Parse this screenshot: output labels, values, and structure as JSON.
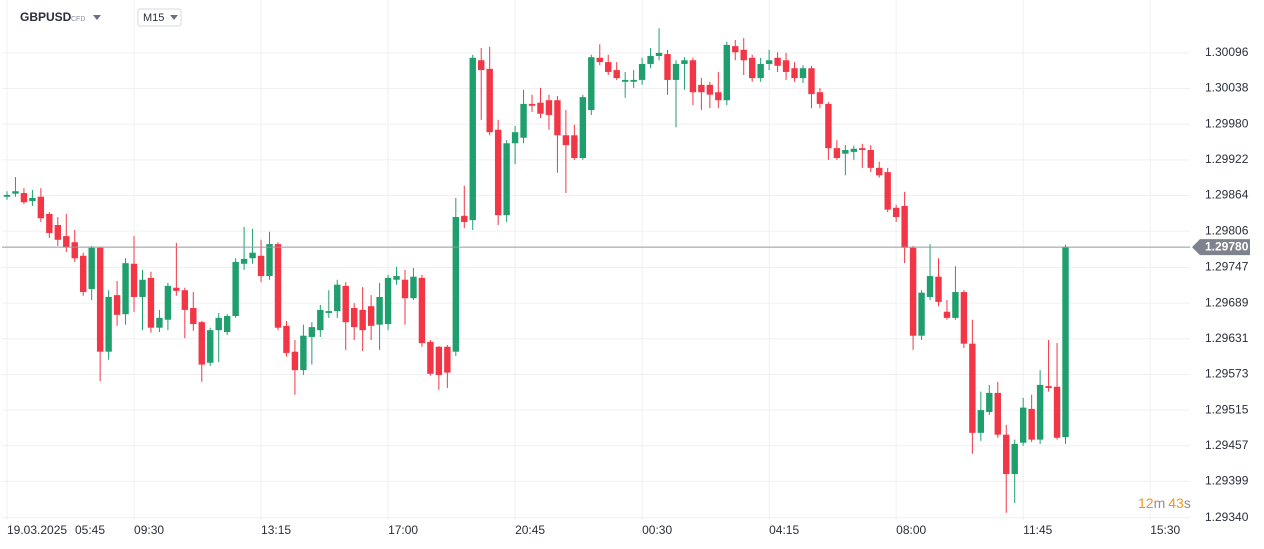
{
  "chart_data": {
    "type": "candlestick",
    "symbol": "GBPUSD",
    "symbol_kind": "CFD",
    "interval": "M15",
    "date_label": "19.03.2025",
    "countdown": {
      "minutes": "12",
      "minutes_unit": "m",
      "seconds": "43",
      "seconds_unit": "s"
    },
    "up_color": "#1f9e6e",
    "down_color": "#f23645",
    "grid": true,
    "xlim": [
      -0.59,
      139.7
    ],
    "xticks": [
      {
        "value": 0,
        "label": "05:45"
      },
      {
        "value": 15,
        "label": "09:30"
      },
      {
        "value": 30,
        "label": "13:15"
      },
      {
        "value": 45,
        "label": "17:00"
      },
      {
        "value": 60,
        "label": "20:45"
      },
      {
        "value": 75,
        "label": "00:30"
      },
      {
        "value": 90,
        "label": "04:15"
      },
      {
        "value": 105,
        "label": "08:00"
      },
      {
        "value": 120,
        "label": "11:45"
      },
      {
        "value": 135,
        "label": "15:30"
      }
    ],
    "ylim": [
      1.2932,
      1.30182
    ],
    "yticks": [
      1.30096,
      1.30038,
      {
        "value": 1.2998,
        "label": "1.29980"
      },
      1.29922,
      1.29864,
      1.29806,
      1.29747,
      1.29689,
      1.29631,
      1.29573,
      1.29515,
      1.29457,
      1.29399,
      {
        "value": 1.2934,
        "label": "1.29340"
      }
    ],
    "last_price": {
      "value": 1.2978,
      "label": "1.29780"
    },
    "open": [
      1.29862,
      1.29867,
      1.29868,
      1.29855,
      1.29862,
      1.29834,
      1.29816,
      1.29798,
      1.29788,
      1.29766,
      1.29712,
      1.29779,
      1.2961,
      1.29702,
      1.29671,
      1.29753,
      1.29699,
      1.2973,
      1.29649,
      1.29662,
      1.29714,
      1.2971,
      1.29681,
      1.29658,
      1.29592,
      1.29645,
      1.29642,
      1.29668,
      1.29753,
      1.29762,
      1.29766,
      1.29733,
      1.29785,
      1.29652,
      1.2961,
      1.2958,
      1.29634,
      1.29645,
      1.29673,
      1.29676,
      1.29717,
      1.29681,
      1.29678,
      1.29684,
      1.29654,
      1.29655,
      1.29727,
      1.29727,
      1.29697,
      1.2973,
      1.29626,
      1.29618,
      1.29618,
      1.2961,
      1.29831,
      1.29824,
      1.30084,
      1.3007,
      1.29971,
      1.29832,
      1.29949,
      1.29958,
      1.30013,
      1.30015,
      1.30019,
      1.30019,
      1.29962,
      1.29962,
      1.29925,
      1.30003,
      1.30088,
      1.30081,
      1.30068,
      1.30049,
      1.30049,
      1.30052,
      1.30078,
      1.30091,
      1.30094,
      1.30052,
      1.30078,
      1.30084,
      1.30044,
      1.30044,
      1.30032,
      1.30019,
      1.30107,
      1.30101,
      1.30088,
      1.30055,
      1.30078,
      1.30088,
      1.30084,
      1.30071,
      1.30055,
      1.30071,
      1.30032,
      1.30013,
      1.29941,
      1.29932,
      1.29935,
      1.29941,
      1.29938,
      1.29909,
      1.29902,
      1.29844,
      1.29847,
      1.29779,
      1.29636,
      1.29699,
      1.29732,
      1.29675,
      1.29665,
      1.29707,
      1.29623,
      1.29478,
      1.29512,
      1.29543,
      1.29475,
      1.29411,
      1.29462,
      1.29517,
      1.29467,
      1.29554,
      1.29553,
      1.29471
    ],
    "high": [
      1.29871,
      1.29894,
      1.29876,
      1.29873,
      1.29876,
      1.29837,
      1.29829,
      1.29834,
      1.29808,
      1.29771,
      1.29782,
      1.2978,
      1.2971,
      1.29725,
      1.29762,
      1.29798,
      1.29743,
      1.2974,
      1.29678,
      1.29722,
      1.29787,
      1.29714,
      1.29707,
      1.2966,
      1.29649,
      1.29673,
      1.29671,
      1.29762,
      1.29813,
      1.2981,
      1.29792,
      1.29805,
      1.29788,
      1.2966,
      1.29629,
      1.29654,
      1.29658,
      1.29686,
      1.2971,
      1.29727,
      1.29723,
      1.29689,
      1.29715,
      1.29702,
      1.29722,
      1.29735,
      1.29748,
      1.29743,
      1.29746,
      1.29735,
      1.29629,
      1.29619,
      1.29621,
      1.2986,
      1.2988,
      1.30093,
      1.30104,
      1.30106,
      1.29987,
      1.29954,
      1.29977,
      1.30036,
      1.30028,
      1.30039,
      1.30028,
      1.30026,
      1.30003,
      1.29979,
      1.30028,
      1.30093,
      1.3011,
      1.30093,
      1.30081,
      1.30065,
      1.30068,
      1.30088,
      1.30104,
      1.30136,
      1.30101,
      1.30084,
      1.30089,
      1.30088,
      1.30055,
      1.30049,
      1.30065,
      1.30114,
      1.30117,
      1.3012,
      1.30093,
      1.30088,
      1.30101,
      1.30097,
      1.30096,
      1.30081,
      1.30076,
      1.30075,
      1.30039,
      1.30016,
      1.29954,
      1.29946,
      1.29945,
      1.29948,
      1.29946,
      1.29919,
      1.29909,
      1.29849,
      1.2987,
      1.29782,
      1.2971,
      1.29785,
      1.29762,
      1.29694,
      1.29749,
      1.2971,
      1.29662,
      1.29545,
      1.29556,
      1.29561,
      1.29491,
      1.29467,
      1.29535,
      1.2954,
      1.2958,
      1.29629,
      1.29624,
      1.29784
    ],
    "low": [
      1.29857,
      1.29862,
      1.2985,
      1.29847,
      1.29821,
      1.29795,
      1.29782,
      1.29772,
      1.29756,
      1.29701,
      1.29694,
      1.29562,
      1.29597,
      1.29652,
      1.29654,
      1.29675,
      1.29645,
      1.29641,
      1.29642,
      1.29645,
      1.29701,
      1.29632,
      1.29644,
      1.29561,
      1.29587,
      1.29593,
      1.29637,
      1.29665,
      1.29743,
      1.29753,
      1.29723,
      1.29727,
      1.29645,
      1.29602,
      1.2954,
      1.29572,
      1.29589,
      1.29634,
      1.29665,
      1.29665,
      1.29613,
      1.29629,
      1.29611,
      1.29629,
      1.29613,
      1.29645,
      1.29719,
      1.29654,
      1.29694,
      1.29618,
      1.29571,
      1.29548,
      1.29551,
      1.29603,
      1.29811,
      1.29808,
      1.29987,
      1.29962,
      1.29816,
      1.29821,
      1.29915,
      1.29949,
      1.3,
      1.2999,
      1.29971,
      1.29901,
      1.29868,
      1.29922,
      1.29922,
      1.29995,
      1.30076,
      1.3006,
      1.30052,
      1.30023,
      1.30039,
      1.30044,
      1.30071,
      1.30084,
      1.30028,
      1.29975,
      1.30036,
      1.30011,
      1.30003,
      1.30006,
      1.30006,
      1.30011,
      1.30084,
      1.3006,
      1.30049,
      1.30049,
      1.30068,
      1.30065,
      1.30052,
      1.30049,
      1.30047,
      1.30006,
      1.30006,
      1.29922,
      1.29922,
      1.29897,
      1.29922,
      1.29909,
      1.29902,
      1.29893,
      1.29837,
      1.29821,
      1.29754,
      1.29613,
      1.29629,
      1.29694,
      1.29684,
      1.29662,
      1.29662,
      1.29616,
      1.29444,
      1.29465,
      1.29507,
      1.2947,
      1.29348,
      1.29364,
      1.29457,
      1.29463,
      1.2946,
      1.29545,
      1.29467,
      1.2946
    ],
    "close": [
      1.29865,
      1.29871,
      1.29853,
      1.2986,
      1.29827,
      1.29803,
      1.29792,
      1.2978,
      1.29762,
      1.29707,
      1.29779,
      1.2961,
      1.29699,
      1.2967,
      1.29754,
      1.29699,
      1.29727,
      1.29649,
      1.29665,
      1.29717,
      1.29709,
      1.29678,
      1.29655,
      1.29589,
      1.29645,
      1.29665,
      1.29668,
      1.29756,
      1.29761,
      1.29771,
      1.29733,
      1.29785,
      1.29649,
      1.29608,
      1.2958,
      1.29636,
      1.2965,
      1.29678,
      1.29676,
      1.29719,
      1.29658,
      1.2965,
      1.29645,
      1.29652,
      1.29699,
      1.2973,
      1.29733,
      1.29697,
      1.29732,
      1.29624,
      1.29574,
      1.29572,
      1.29576,
      1.29829,
      1.29821,
      1.30088,
      1.30068,
      1.29967,
      1.29832,
      1.29949,
      1.29967,
      1.30013,
      1.3001,
      1.29997,
      1.29995,
      1.29962,
      1.29946,
      1.29925,
      1.30024,
      1.30089,
      1.30081,
      1.30065,
      1.30055,
      1.30052,
      1.30052,
      1.30078,
      1.30091,
      1.30096,
      1.30052,
      1.30078,
      1.30084,
      1.30032,
      1.30032,
      1.30028,
      1.30019,
      1.30109,
      1.30097,
      1.30084,
      1.30055,
      1.30078,
      1.30084,
      1.30075,
      1.30065,
      1.30055,
      1.30071,
      1.30029,
      1.30013,
      1.29941,
      1.29925,
      1.29938,
      1.2994,
      1.29938,
      1.29909,
      1.29897,
      1.29841,
      1.29829,
      1.29779,
      1.29636,
      1.29706,
      1.29733,
      1.29691,
      1.29665,
      1.29707,
      1.29623,
      1.29478,
      1.29515,
      1.29543,
      1.29475,
      1.29411,
      1.2946,
      1.29519,
      1.29467,
      1.29556,
      1.29551,
      1.2947,
      1.2978
    ]
  }
}
